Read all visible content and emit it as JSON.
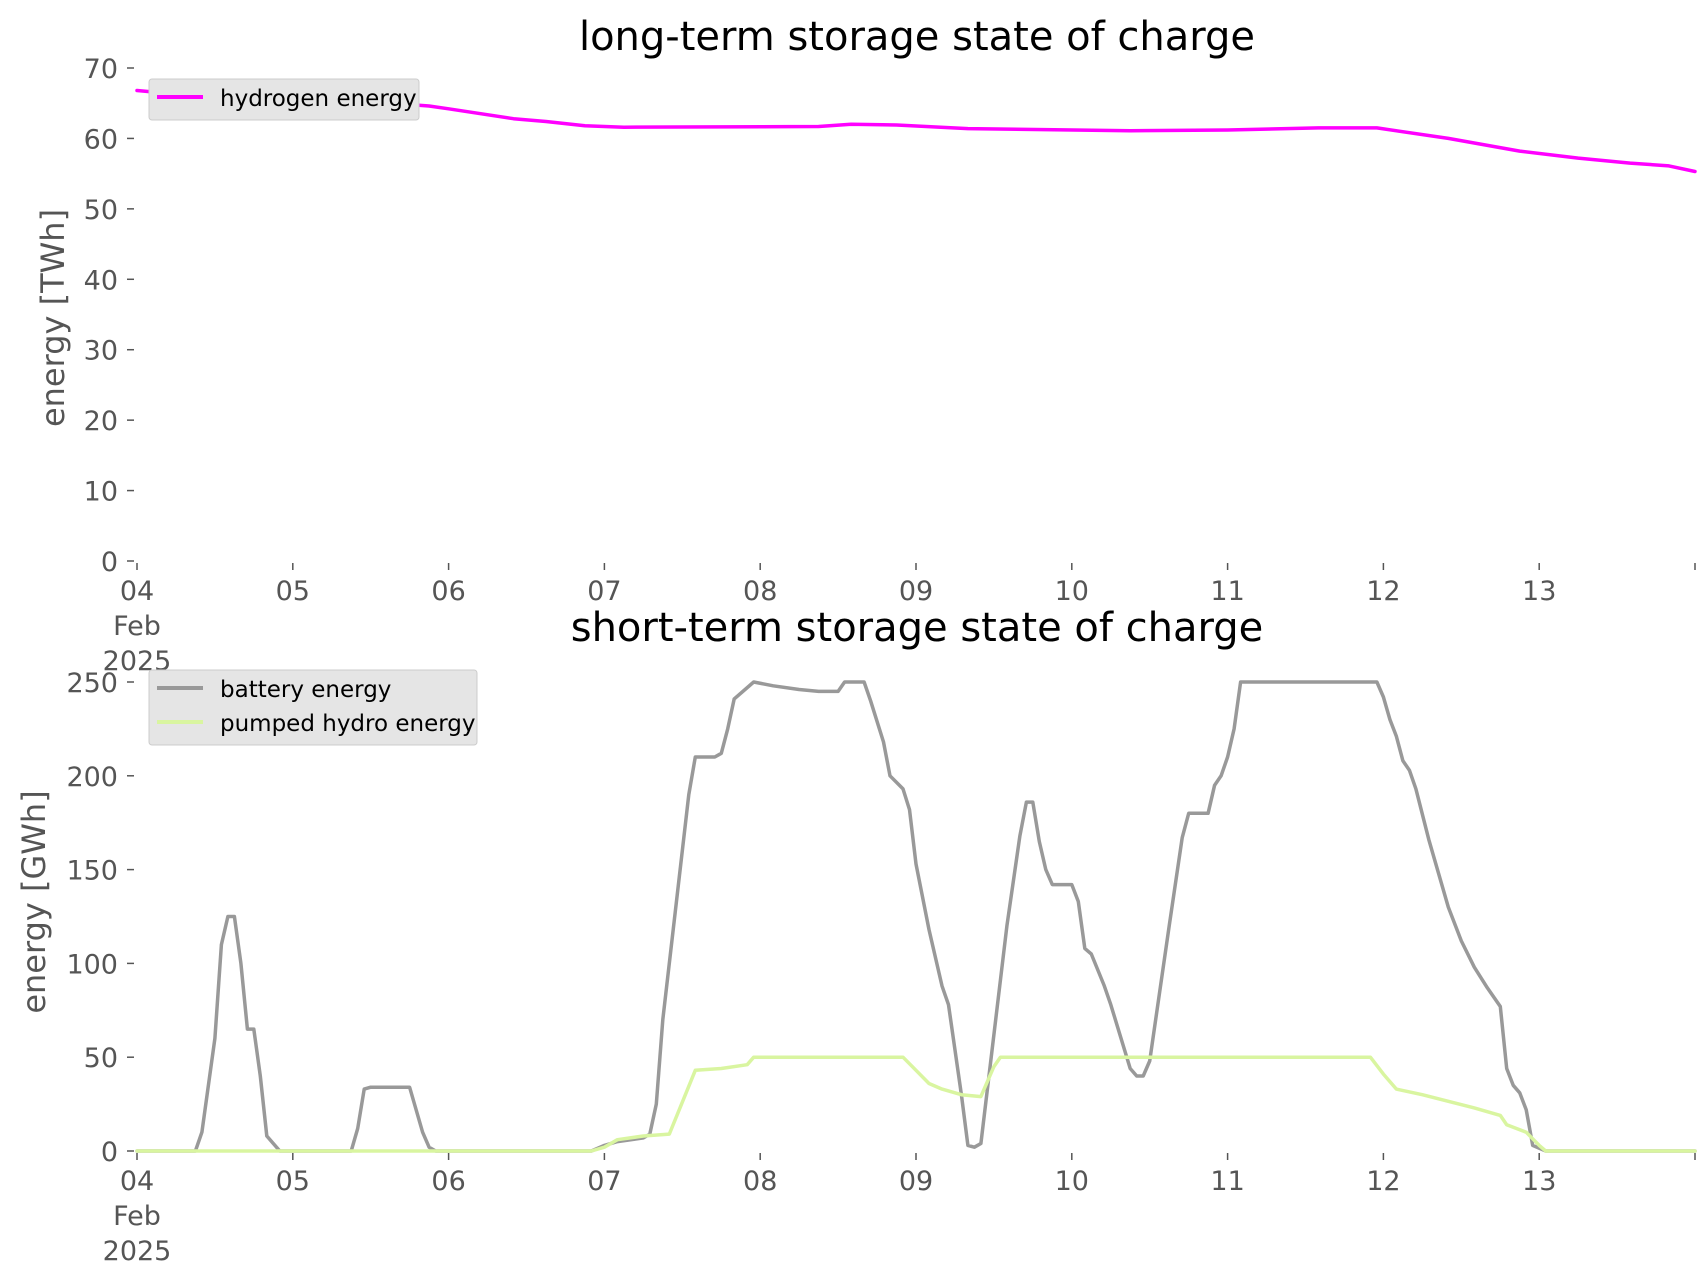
{
  "chart_data": [
    {
      "type": "line",
      "title": "long-term storage state of charge",
      "xlabel": "",
      "ylabel": "energy [TWh]",
      "x_range": [
        "2025-02-04",
        "2025-02-14"
      ],
      "ylim": [
        0,
        70
      ],
      "yticks": [
        0,
        10,
        20,
        30,
        40,
        50,
        60,
        70
      ],
      "xticks": [
        {
          "date": "2025-02-04",
          "label": [
            "04",
            "Feb",
            "2025"
          ]
        },
        {
          "date": "2025-02-05",
          "label": [
            "05"
          ]
        },
        {
          "date": "2025-02-06",
          "label": [
            "06"
          ]
        },
        {
          "date": "2025-02-07",
          "label": [
            "07"
          ]
        },
        {
          "date": "2025-02-08",
          "label": [
            "08"
          ]
        },
        {
          "date": "2025-02-09",
          "label": [
            "09"
          ]
        },
        {
          "date": "2025-02-10",
          "label": [
            "10"
          ]
        },
        {
          "date": "2025-02-11",
          "label": [
            "11"
          ]
        },
        {
          "date": "2025-02-12",
          "label": [
            "12"
          ]
        },
        {
          "date": "2025-02-13",
          "label": [
            "13"
          ]
        },
        {
          "date": "2025-02-14",
          "label": []
        }
      ],
      "grid": false,
      "legend_position": "top-left",
      "series": [
        {
          "name": "hydrogen energy",
          "color": "#ff00ff",
          "points": [
            [
              "2025-02-04 00:00",
              66.8
            ],
            [
              "2025-02-04 12:00",
              65.8
            ],
            [
              "2025-02-05 12:00",
              65.2
            ],
            [
              "2025-02-05 21:00",
              64.6
            ],
            [
              "2025-02-06 00:00",
              64.2
            ],
            [
              "2025-02-06 10:00",
              62.8
            ],
            [
              "2025-02-06 15:00",
              62.4
            ],
            [
              "2025-02-06 21:00",
              61.8
            ],
            [
              "2025-02-07 03:00",
              61.6
            ],
            [
              "2025-02-08 09:00",
              61.7
            ],
            [
              "2025-02-08 14:00",
              62.0
            ],
            [
              "2025-02-08 21:00",
              61.9
            ],
            [
              "2025-02-09 08:00",
              61.4
            ],
            [
              "2025-02-10 09:00",
              61.1
            ],
            [
              "2025-02-11 00:00",
              61.2
            ],
            [
              "2025-02-11 14:00",
              61.5
            ],
            [
              "2025-02-11 23:00",
              61.5
            ],
            [
              "2025-02-12 10:00",
              60.0
            ],
            [
              "2025-02-12 21:00",
              58.2
            ],
            [
              "2025-02-13 06:00",
              57.2
            ],
            [
              "2025-02-13 14:00",
              56.5
            ],
            [
              "2025-02-13 20:00",
              56.1
            ],
            [
              "2025-02-14 00:00",
              55.3
            ]
          ]
        }
      ]
    },
    {
      "type": "line",
      "title": "short-term storage state of charge",
      "xlabel": "",
      "ylabel": "energy [GWh]",
      "x_range": [
        "2025-02-04",
        "2025-02-14"
      ],
      "ylim": [
        0,
        250
      ],
      "yticks": [
        0,
        50,
        100,
        150,
        200,
        250
      ],
      "xticks": [
        {
          "date": "2025-02-04",
          "label": [
            "04",
            "Feb",
            "2025"
          ]
        },
        {
          "date": "2025-02-05",
          "label": [
            "05"
          ]
        },
        {
          "date": "2025-02-06",
          "label": [
            "06"
          ]
        },
        {
          "date": "2025-02-07",
          "label": [
            "07"
          ]
        },
        {
          "date": "2025-02-08",
          "label": [
            "08"
          ]
        },
        {
          "date": "2025-02-09",
          "label": [
            "09"
          ]
        },
        {
          "date": "2025-02-10",
          "label": [
            "10"
          ]
        },
        {
          "date": "2025-02-11",
          "label": [
            "11"
          ]
        },
        {
          "date": "2025-02-12",
          "label": [
            "12"
          ]
        },
        {
          "date": "2025-02-13",
          "label": [
            "13"
          ]
        },
        {
          "date": "2025-02-14",
          "label": []
        }
      ],
      "grid": false,
      "legend_position": "top-left",
      "series": [
        {
          "name": "battery energy",
          "color": "#999999",
          "points": [
            [
              "2025-02-04 00:00",
              0
            ],
            [
              "2025-02-04 09:00",
              0
            ],
            [
              "2025-02-04 10:00",
              10
            ],
            [
              "2025-02-04 12:00",
              60
            ],
            [
              "2025-02-04 13:00",
              110
            ],
            [
              "2025-02-04 14:00",
              125
            ],
            [
              "2025-02-04 15:00",
              125
            ],
            [
              "2025-02-04 16:00",
              100
            ],
            [
              "2025-02-04 17:00",
              65
            ],
            [
              "2025-02-04 18:00",
              65
            ],
            [
              "2025-02-04 19:00",
              40
            ],
            [
              "2025-02-04 20:00",
              8
            ],
            [
              "2025-02-04 22:00",
              0
            ],
            [
              "2025-02-05 09:00",
              0
            ],
            [
              "2025-02-05 10:00",
              12
            ],
            [
              "2025-02-05 11:00",
              33
            ],
            [
              "2025-02-05 12:00",
              34
            ],
            [
              "2025-02-05 18:00",
              34
            ],
            [
              "2025-02-05 20:00",
              10
            ],
            [
              "2025-02-05 21:00",
              2
            ],
            [
              "2025-02-05 22:00",
              0
            ],
            [
              "2025-02-06 22:00",
              0
            ],
            [
              "2025-02-07 00:00",
              3
            ],
            [
              "2025-02-07 02:00",
              5
            ],
            [
              "2025-02-07 06:00",
              7
            ],
            [
              "2025-02-07 07:00",
              9
            ],
            [
              "2025-02-07 08:00",
              25
            ],
            [
              "2025-02-07 09:00",
              70
            ],
            [
              "2025-02-07 13:00",
              190
            ],
            [
              "2025-02-07 14:00",
              210
            ],
            [
              "2025-02-07 17:00",
              210
            ],
            [
              "2025-02-07 18:00",
              212
            ],
            [
              "2025-02-07 19:00",
              225
            ],
            [
              "2025-02-07 20:00",
              241
            ],
            [
              "2025-02-07 23:00",
              250
            ],
            [
              "2025-02-08 02:00",
              248
            ],
            [
              "2025-02-08 06:00",
              246
            ],
            [
              "2025-02-08 09:00",
              245
            ],
            [
              "2025-02-08 12:00",
              245
            ],
            [
              "2025-02-08 13:00",
              250
            ],
            [
              "2025-02-08 16:00",
              250
            ],
            [
              "2025-02-08 17:00",
              240
            ],
            [
              "2025-02-08 19:00",
              218
            ],
            [
              "2025-02-08 20:00",
              200
            ],
            [
              "2025-02-08 22:00",
              193
            ],
            [
              "2025-02-08 23:00",
              182
            ],
            [
              "2025-02-09 00:00",
              153
            ],
            [
              "2025-02-09 02:00",
              118
            ],
            [
              "2025-02-09 04:00",
              88
            ],
            [
              "2025-02-09 05:00",
              78
            ],
            [
              "2025-02-09 07:00",
              30
            ],
            [
              "2025-02-09 08:00",
              3
            ],
            [
              "2025-02-09 09:00",
              2
            ],
            [
              "2025-02-09 10:00",
              4
            ],
            [
              "2025-02-09 14:00",
              120
            ],
            [
              "2025-02-09 16:00",
              168
            ],
            [
              "2025-02-09 17:00",
              186
            ],
            [
              "2025-02-09 18:00",
              186
            ],
            [
              "2025-02-09 19:00",
              165
            ],
            [
              "2025-02-09 20:00",
              150
            ],
            [
              "2025-02-09 21:00",
              142
            ],
            [
              "2025-02-09 22:00",
              142
            ],
            [
              "2025-02-10 00:00",
              142
            ],
            [
              "2025-02-10 01:00",
              133
            ],
            [
              "2025-02-10 02:00",
              108
            ],
            [
              "2025-02-10 03:00",
              105
            ],
            [
              "2025-02-10 05:00",
              88
            ],
            [
              "2025-02-10 06:00",
              78
            ],
            [
              "2025-02-10 09:00",
              44
            ],
            [
              "2025-02-10 10:00",
              40
            ],
            [
              "2025-02-10 11:00",
              40
            ],
            [
              "2025-02-10 12:00",
              48
            ],
            [
              "2025-02-10 15:00",
              120
            ],
            [
              "2025-02-10 17:00",
              167
            ],
            [
              "2025-02-10 18:00",
              180
            ],
            [
              "2025-02-10 21:00",
              180
            ],
            [
              "2025-02-10 22:00",
              195
            ],
            [
              "2025-02-10 23:00",
              200
            ],
            [
              "2025-02-11 00:00",
              210
            ],
            [
              "2025-02-11 01:00",
              225
            ],
            [
              "2025-02-11 02:00",
              250
            ],
            [
              "2025-02-11 23:00",
              250
            ],
            [
              "2025-02-12 00:00",
              242
            ],
            [
              "2025-02-12 01:00",
              230
            ],
            [
              "2025-02-12 02:00",
              221
            ],
            [
              "2025-02-12 03:00",
              208
            ],
            [
              "2025-02-12 04:00",
              203
            ],
            [
              "2025-02-12 05:00",
              193
            ],
            [
              "2025-02-12 07:00",
              166
            ],
            [
              "2025-02-12 10:00",
              130
            ],
            [
              "2025-02-12 12:00",
              112
            ],
            [
              "2025-02-12 14:00",
              98
            ],
            [
              "2025-02-12 16:00",
              87
            ],
            [
              "2025-02-12 18:00",
              77
            ],
            [
              "2025-02-12 19:00",
              44
            ],
            [
              "2025-02-12 20:00",
              35
            ],
            [
              "2025-02-12 21:00",
              31
            ],
            [
              "2025-02-12 22:00",
              22
            ],
            [
              "2025-02-12 23:00",
              3
            ],
            [
              "2025-02-13 01:00",
              0
            ],
            [
              "2025-02-14 00:00",
              0
            ]
          ]
        },
        {
          "name": "pumped hydro energy",
          "color": "#d9f5a0",
          "points": [
            [
              "2025-02-04 00:00",
              0
            ],
            [
              "2025-02-06 22:00",
              0
            ],
            [
              "2025-02-07 00:00",
              2
            ],
            [
              "2025-02-07 02:00",
              6
            ],
            [
              "2025-02-07 06:00",
              8
            ],
            [
              "2025-02-07 10:00",
              9
            ],
            [
              "2025-02-07 14:00",
              43
            ],
            [
              "2025-02-07 18:00",
              44
            ],
            [
              "2025-02-07 22:00",
              46
            ],
            [
              "2025-02-07 23:00",
              50
            ],
            [
              "2025-02-08 22:00",
              50
            ],
            [
              "2025-02-09 00:00",
              43
            ],
            [
              "2025-02-09 02:00",
              36
            ],
            [
              "2025-02-09 04:00",
              33
            ],
            [
              "2025-02-09 07:00",
              30
            ],
            [
              "2025-02-09 10:00",
              29
            ],
            [
              "2025-02-09 12:00",
              45
            ],
            [
              "2025-02-09 13:00",
              50
            ],
            [
              "2025-02-11 22:00",
              50
            ],
            [
              "2025-02-12 00:00",
              41
            ],
            [
              "2025-02-12 02:00",
              33
            ],
            [
              "2025-02-12 06:00",
              30
            ],
            [
              "2025-02-12 14:00",
              23
            ],
            [
              "2025-02-12 18:00",
              19
            ],
            [
              "2025-02-12 19:00",
              14
            ],
            [
              "2025-02-12 22:00",
              10
            ],
            [
              "2025-02-13 00:00",
              3
            ],
            [
              "2025-02-13 01:00",
              0
            ],
            [
              "2025-02-14 00:00",
              0
            ]
          ]
        }
      ]
    }
  ]
}
